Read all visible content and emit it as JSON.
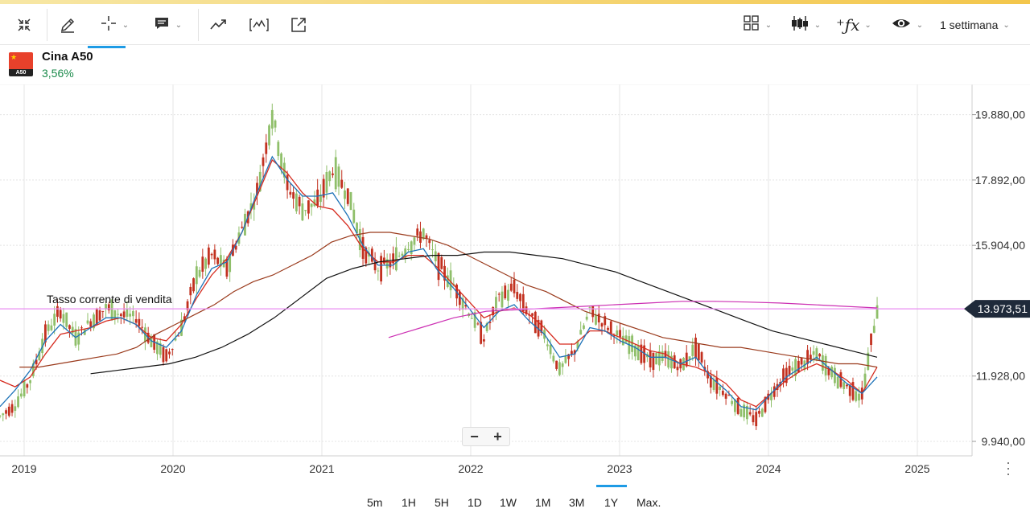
{
  "toolbar": {
    "tools": [
      {
        "icon": "collapse-icon"
      },
      {
        "icon": "pencil-icon"
      },
      {
        "icon": "crosshair-icon"
      },
      {
        "icon": "comment-icon"
      },
      {
        "icon": "trend-icon"
      },
      {
        "icon": "wave-chart-icon"
      },
      {
        "icon": "external-open-icon"
      },
      {
        "icon": "layout-grid-icon"
      },
      {
        "icon": "candlestick-icon"
      },
      {
        "icon": "function-icon"
      },
      {
        "icon": "eye-icon"
      }
    ],
    "period_select": "1 settimana"
  },
  "instrument": {
    "name": "Cina A50",
    "change": "3,56%",
    "flag_tag": "A50",
    "change_color": "#1a8a4a"
  },
  "chart_data": {
    "type": "candlestick",
    "x_ticks": [
      "2019",
      "2020",
      "2021",
      "2022",
      "2023",
      "2024",
      "2025"
    ],
    "y_ticks": [
      "19.880,00",
      "17.892,00",
      "15.904,00",
      "11.928,00",
      "9.940,00"
    ],
    "ylim": [
      9500,
      20800
    ],
    "current_price": "13.973,51",
    "current_price_value": 13973.51,
    "annotation": "Tasso corrente di vendita",
    "series": [
      {
        "values": [
          10700,
          11050,
          11800,
          13200,
          13900,
          13100,
          13600,
          14000,
          13800,
          13700,
          13000,
          12500,
          13400,
          15000,
          15600,
          15200,
          16400,
          17500,
          19900,
          17700,
          17000,
          17200,
          18200,
          17500,
          15800,
          15200,
          15400,
          15900,
          16300,
          15300,
          14700,
          13900,
          13100,
          14300,
          14600,
          13800,
          13200,
          12100,
          12700,
          13900,
          13500,
          13100,
          12800,
          12400,
          12500,
          12200,
          12800,
          11800,
          11400,
          10900,
          10600,
          11400,
          12000,
          12300,
          12600,
          12000,
          11600,
          11300,
          14000
        ]
      },
      {
        "color": "#d62b1f",
        "values": [
          11800,
          11600,
          11900,
          12600,
          13200,
          13300,
          13400,
          13600,
          13700,
          13500,
          13100,
          13000,
          13500,
          14300,
          15000,
          15500,
          16300,
          17400,
          18500,
          18100,
          17500,
          17100,
          17000,
          16500,
          15800,
          15400,
          15400,
          15600,
          15600,
          15200,
          14700,
          14200,
          13700,
          13900,
          14000,
          13800,
          13400,
          12900,
          12900,
          13300,
          13300,
          13100,
          12900,
          12700,
          12600,
          12300,
          12200,
          12000,
          11700,
          11200,
          11000,
          11400,
          11800,
          12100,
          12300,
          12100,
          11800,
          11400,
          12200
        ]
      },
      {
        "color": "#1e73b8",
        "values": [
          11000,
          11500,
          12100,
          13000,
          13500,
          13100,
          13400,
          13700,
          13700,
          13500,
          13000,
          12800,
          13300,
          14400,
          15200,
          15400,
          16300,
          17500,
          18600,
          17900,
          17400,
          17400,
          17500,
          16800,
          15900,
          15300,
          15300,
          15700,
          15800,
          15100,
          14600,
          14000,
          13400,
          13900,
          14100,
          13600,
          13200,
          12500,
          12600,
          13400,
          13300,
          13000,
          12800,
          12500,
          12500,
          12300,
          12500,
          11900,
          11500,
          11000,
          10900,
          11400,
          11900,
          12200,
          12500,
          12100,
          11700,
          11400,
          11900
        ]
      },
      {
        "color": "#9a3a1c",
        "values": [
          null,
          12200,
          12200,
          12300,
          12400,
          12500,
          12600,
          12800,
          13200,
          13500,
          13800,
          14100,
          14500,
          14800,
          15000,
          15300,
          15600,
          16000,
          16200,
          16300,
          16300,
          16200,
          16100,
          15900,
          15600,
          15300,
          15000,
          14700,
          14500,
          14200,
          13900,
          13700,
          13500,
          13300,
          13100,
          13000,
          12900,
          12800,
          12800,
          12700,
          12600,
          12500,
          12400,
          12300,
          12300,
          12200
        ]
      },
      {
        "color": "#111111",
        "values": [
          null,
          12000,
          12100,
          12200,
          12300,
          12500,
          12800,
          13200,
          13700,
          14300,
          14900,
          15200,
          15400,
          15500,
          15600,
          15600,
          15700,
          15700,
          15600,
          15500,
          15300,
          15100,
          14800,
          14500,
          14200,
          13900,
          13600,
          13300,
          13100,
          12900,
          12700,
          12500
        ]
      },
      {
        "color": "#cc2fb3",
        "values": [
          13100,
          13400,
          13700,
          13900,
          13950,
          14000,
          14050,
          14100,
          14150,
          14200,
          14200,
          14180,
          14150,
          14100,
          14050,
          14000
        ]
      }
    ]
  }
}
